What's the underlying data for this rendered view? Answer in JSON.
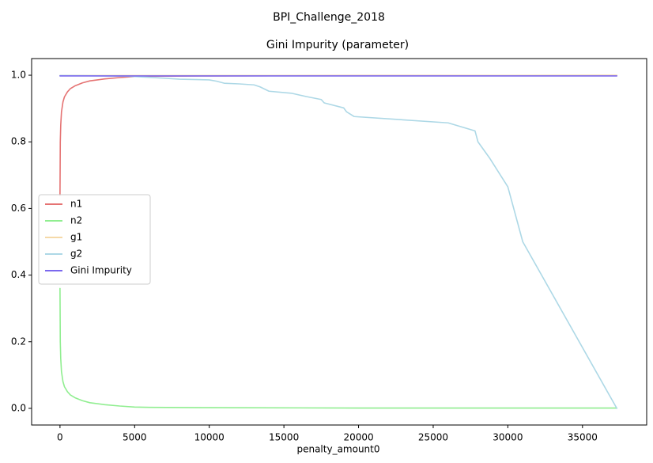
{
  "chart_data": {
    "type": "line",
    "suptitle": "BPI_Challenge_2018",
    "title": "Gini Impurity (parameter)",
    "xlabel": "penalty_amount0",
    "ylabel": "",
    "xlim": [
      -1900,
      39300
    ],
    "ylim": [
      -0.05,
      1.05
    ],
    "xticks": [
      0,
      5000,
      10000,
      15000,
      20000,
      25000,
      30000,
      35000
    ],
    "xtick_labels": [
      "0",
      "5000",
      "10000",
      "15000",
      "20000",
      "25000",
      "30000",
      "35000"
    ],
    "yticks": [
      0.0,
      0.2,
      0.4,
      0.6,
      0.8,
      1.0
    ],
    "ytick_labels": [
      "0.0",
      "0.2",
      "0.4",
      "0.6",
      "0.8",
      "1.0"
    ],
    "grid": false,
    "legend_position": "center-left",
    "series": [
      {
        "name": "n1",
        "color": "#e57373",
        "x": [
          0,
          20,
          50,
          100,
          200,
          300,
          500,
          700,
          1000,
          1500,
          2000,
          3000,
          4000,
          5000,
          6000,
          10000,
          20000,
          30000,
          37300
        ],
        "y": [
          0.64,
          0.8,
          0.85,
          0.89,
          0.92,
          0.935,
          0.95,
          0.96,
          0.968,
          0.977,
          0.983,
          0.989,
          0.993,
          0.996,
          0.997,
          0.998,
          0.999,
          0.999,
          0.999
        ]
      },
      {
        "name": "n2",
        "color": "#90ee90",
        "x": [
          0,
          20,
          50,
          100,
          200,
          300,
          500,
          700,
          1000,
          1500,
          2000,
          3000,
          4000,
          5000,
          6000,
          10000,
          20000,
          30000,
          37300
        ],
        "y": [
          0.36,
          0.2,
          0.15,
          0.11,
          0.08,
          0.065,
          0.05,
          0.04,
          0.032,
          0.023,
          0.017,
          0.011,
          0.007,
          0.004,
          0.003,
          0.002,
          0.001,
          0.001,
          0.001
        ]
      },
      {
        "name": "g1",
        "color": "#f5d9a8",
        "x": [
          0,
          5000,
          10000,
          20000,
          30000,
          37300
        ],
        "y": [
          0.999,
          0.999,
          0.999,
          0.999,
          0.9995,
          1.0
        ]
      },
      {
        "name": "g2",
        "color": "#add8e6",
        "x": [
          0,
          3000,
          4500,
          5000,
          7000,
          8000,
          10000,
          10500,
          11000,
          12000,
          13000,
          13400,
          14000,
          15500,
          16500,
          17500,
          17700,
          19000,
          19200,
          19700,
          26000,
          27800,
          28000,
          28800,
          30000,
          31000,
          37300
        ],
        "y": [
          0.999,
          0.998,
          0.997,
          0.996,
          0.991,
          0.988,
          0.986,
          0.982,
          0.976,
          0.974,
          0.971,
          0.965,
          0.952,
          0.946,
          0.936,
          0.927,
          0.917,
          0.902,
          0.89,
          0.876,
          0.857,
          0.833,
          0.8,
          0.75,
          0.665,
          0.5,
          0.0
        ]
      },
      {
        "name": "Gini Impurity",
        "color": "#7b68ee",
        "x": [
          0,
          37300
        ],
        "y": [
          0.998,
          0.998
        ]
      }
    ]
  }
}
